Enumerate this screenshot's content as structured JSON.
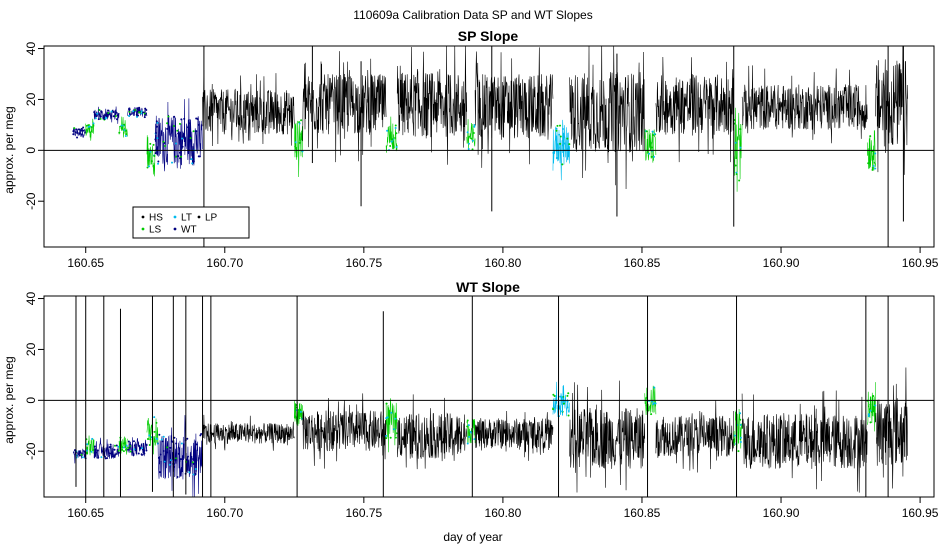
{
  "figure_title": "110609a   Calibration Data SP and WT Slopes",
  "colors": {
    "HS": "#000000",
    "LS": "#00cc00",
    "LT": "#00bbee",
    "WT": "#000080",
    "LP": "#000000",
    "trace": "#000000",
    "reference_line": "#000000"
  },
  "chart_data": [
    {
      "type": "line",
      "title": "SP Slope",
      "xlabel": "",
      "ylabel": "approx. per meg",
      "xlim": [
        160.635,
        160.955
      ],
      "ylim": [
        -38,
        41
      ],
      "xticks": [
        160.65,
        160.7,
        160.75,
        160.8,
        160.85,
        160.9,
        160.95
      ],
      "xtick_labels": [
        "160.65",
        "160.70",
        "160.75",
        "160.80",
        "160.85",
        "160.90",
        "160.95"
      ],
      "yticks": [
        -20,
        0,
        20,
        40
      ],
      "ytick_labels": [
        "-20",
        "0",
        "20",
        "40"
      ],
      "hline": 0,
      "grid": false,
      "legend": {
        "placement": "bottom-left",
        "entries": [
          "HS",
          "LT",
          "LP",
          "LS",
          "WT"
        ]
      },
      "segments": [
        {
          "x": [
            160.6455,
            160.65
          ],
          "mean": 7,
          "amp": 2,
          "series": "WT"
        },
        {
          "x": [
            160.65,
            160.653
          ],
          "mean": 8,
          "amp": 3,
          "series": "LS"
        },
        {
          "x": [
            160.653,
            160.662
          ],
          "mean": 14,
          "amp": 2,
          "series": "WT"
        },
        {
          "x": [
            160.662,
            160.665
          ],
          "mean": 8,
          "amp": 3,
          "series": "LS"
        },
        {
          "x": [
            160.665,
            160.672
          ],
          "mean": 15,
          "amp": 2,
          "series": "WT"
        },
        {
          "x": [
            160.672,
            160.675
          ],
          "mean": -2,
          "amp": 5,
          "series": "LS"
        },
        {
          "x": [
            160.675,
            160.692
          ],
          "mean": 4,
          "amp": 10,
          "series": "WT"
        },
        {
          "x": [
            160.692,
            160.725
          ],
          "mean": 15,
          "amp": 9,
          "series": "trace"
        },
        {
          "x": [
            160.725,
            160.728
          ],
          "mean": 4,
          "amp": 8,
          "series": "LS"
        },
        {
          "x": [
            160.728,
            160.758
          ],
          "mean": 18,
          "amp": 12,
          "series": "trace"
        },
        {
          "x": [
            160.758,
            160.762
          ],
          "mean": 5,
          "amp": 6,
          "series": "LS"
        },
        {
          "x": [
            160.762,
            160.787
          ],
          "mean": 18,
          "amp": 13,
          "series": "trace"
        },
        {
          "x": [
            160.787,
            160.79
          ],
          "mean": 5,
          "amp": 6,
          "series": "LS"
        },
        {
          "x": [
            160.79,
            160.818
          ],
          "mean": 17,
          "amp": 13,
          "series": "trace"
        },
        {
          "x": [
            160.818,
            160.824
          ],
          "mean": 2,
          "amp": 8,
          "series": "LT"
        },
        {
          "x": [
            160.824,
            160.851
          ],
          "mean": 15,
          "amp": 16,
          "series": "trace"
        },
        {
          "x": [
            160.851,
            160.855
          ],
          "mean": 2,
          "amp": 7,
          "series": "LS"
        },
        {
          "x": [
            160.855,
            160.883
          ],
          "mean": 18,
          "amp": 12,
          "series": "trace"
        },
        {
          "x": [
            160.883,
            160.886
          ],
          "mean": 0,
          "amp": 12,
          "series": "LS"
        },
        {
          "x": [
            160.886,
            160.931
          ],
          "mean": 17,
          "amp": 9,
          "series": "trace"
        },
        {
          "x": [
            160.931,
            160.934
          ],
          "mean": 0,
          "amp": 8,
          "series": "LS"
        },
        {
          "x": [
            160.934,
            160.9455
          ],
          "mean": 18,
          "amp": 18,
          "series": "trace"
        }
      ],
      "spikes": [
        {
          "x": 160.6925,
          "y": [
            -38,
            41
          ]
        },
        {
          "x": 160.7315,
          "y": [
            -5,
            41
          ]
        },
        {
          "x": 160.749,
          "y": [
            -22,
            35
          ]
        },
        {
          "x": 160.796,
          "y": [
            -24,
            41
          ]
        },
        {
          "x": 160.841,
          "y": [
            -26,
            38
          ]
        },
        {
          "x": 160.883,
          "y": [
            -30,
            41
          ]
        },
        {
          "x": 160.9385,
          "y": [
            -38,
            41
          ]
        },
        {
          "x": 160.944,
          "y": [
            -28,
            41
          ]
        }
      ]
    },
    {
      "type": "line",
      "title": "WT Slope",
      "xlabel": "day of year",
      "ylabel": "approx. per meg",
      "xlim": [
        160.635,
        160.955
      ],
      "ylim": [
        -38,
        41
      ],
      "xticks": [
        160.65,
        160.7,
        160.75,
        160.8,
        160.85,
        160.9,
        160.95
      ],
      "xtick_labels": [
        "160.65",
        "160.70",
        "160.75",
        "160.80",
        "160.85",
        "160.90",
        "160.95"
      ],
      "yticks": [
        -20,
        0,
        20,
        40
      ],
      "ytick_labels": [
        "-20",
        "0",
        "20",
        "40"
      ],
      "hline": 0,
      "grid": false,
      "segments": [
        {
          "x": [
            160.6455,
            160.65
          ],
          "mean": -21,
          "amp": 2,
          "series": "WT"
        },
        {
          "x": [
            160.65,
            160.653
          ],
          "mean": -18,
          "amp": 3,
          "series": "LS"
        },
        {
          "x": [
            160.653,
            160.662
          ],
          "mean": -20,
          "amp": 3,
          "series": "WT"
        },
        {
          "x": [
            160.662,
            160.665
          ],
          "mean": -17,
          "amp": 3,
          "series": "LS"
        },
        {
          "x": [
            160.665,
            160.672
          ],
          "mean": -19,
          "amp": 3,
          "series": "WT"
        },
        {
          "x": [
            160.672,
            160.676
          ],
          "mean": -12,
          "amp": 6,
          "series": "LS"
        },
        {
          "x": [
            160.676,
            160.692
          ],
          "mean": -22,
          "amp": 9,
          "series": "WT"
        },
        {
          "x": [
            160.692,
            160.725
          ],
          "mean": -13,
          "amp": 4,
          "series": "trace"
        },
        {
          "x": [
            160.725,
            160.728
          ],
          "mean": -5,
          "amp": 5,
          "series": "LS"
        },
        {
          "x": [
            160.728,
            160.758
          ],
          "mean": -12,
          "amp": 8,
          "series": "trace"
        },
        {
          "x": [
            160.758,
            160.762
          ],
          "mean": -8,
          "amp": 7,
          "series": "LS"
        },
        {
          "x": [
            160.762,
            160.787
          ],
          "mean": -14,
          "amp": 9,
          "series": "trace"
        },
        {
          "x": [
            160.787,
            160.79
          ],
          "mean": -12,
          "amp": 5,
          "series": "LS"
        },
        {
          "x": [
            160.79,
            160.818
          ],
          "mean": -13,
          "amp": 6,
          "series": "trace"
        },
        {
          "x": [
            160.818,
            160.824
          ],
          "mean": -2,
          "amp": 5,
          "series": "LT"
        },
        {
          "x": [
            160.824,
            160.851
          ],
          "mean": -15,
          "amp": 12,
          "series": "trace"
        },
        {
          "x": [
            160.851,
            160.855
          ],
          "mean": 0,
          "amp": 6,
          "series": "LS"
        },
        {
          "x": [
            160.855,
            160.883
          ],
          "mean": -14,
          "amp": 8,
          "series": "trace"
        },
        {
          "x": [
            160.883,
            160.886
          ],
          "mean": -12,
          "amp": 9,
          "series": "LS"
        },
        {
          "x": [
            160.886,
            160.931
          ],
          "mean": -16,
          "amp": 11,
          "series": "trace"
        },
        {
          "x": [
            160.931,
            160.934
          ],
          "mean": -3,
          "amp": 6,
          "series": "LS"
        },
        {
          "x": [
            160.934,
            160.9455
          ],
          "mean": -12,
          "amp": 14,
          "series": "trace"
        }
      ],
      "spikes": [
        {
          "x": 160.6465,
          "y": [
            -34,
            41
          ]
        },
        {
          "x": 160.65,
          "y": [
            -38,
            41
          ]
        },
        {
          "x": 160.6565,
          "y": [
            -38,
            41
          ]
        },
        {
          "x": 160.6625,
          "y": [
            -38,
            36
          ]
        },
        {
          "x": 160.674,
          "y": [
            -36,
            41
          ]
        },
        {
          "x": 160.6815,
          "y": [
            -38,
            41
          ]
        },
        {
          "x": 160.686,
          "y": [
            -37,
            41
          ]
        },
        {
          "x": 160.692,
          "y": [
            -38,
            41
          ]
        },
        {
          "x": 160.695,
          "y": [
            -38,
            41
          ]
        },
        {
          "x": 160.726,
          "y": [
            -38,
            41
          ]
        },
        {
          "x": 160.757,
          "y": [
            -38,
            35
          ]
        },
        {
          "x": 160.789,
          "y": [
            -38,
            41
          ]
        },
        {
          "x": 160.82,
          "y": [
            -38,
            41
          ]
        },
        {
          "x": 160.852,
          "y": [
            -38,
            41
          ]
        },
        {
          "x": 160.884,
          "y": [
            -38,
            41
          ]
        },
        {
          "x": 160.9305,
          "y": [
            -38,
            41
          ]
        },
        {
          "x": 160.9385,
          "y": [
            -38,
            41
          ]
        }
      ]
    }
  ]
}
